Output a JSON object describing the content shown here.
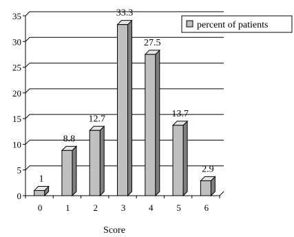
{
  "chart_data": {
    "type": "bar",
    "categories": [
      "0",
      "1",
      "2",
      "3",
      "4",
      "5",
      "6"
    ],
    "series": [
      {
        "name": "percent of patients",
        "values": [
          1,
          8.8,
          12.7,
          33.3,
          27.5,
          13.7,
          2.9
        ]
      }
    ],
    "data_labels": [
      "1",
      "8.8",
      "12.7",
      "33.3",
      "27.5",
      "13.7",
      "2.9"
    ],
    "y_ticks": [
      "0",
      "5",
      "10",
      "15",
      "20",
      "25",
      "30",
      "35"
    ],
    "xlabel": "Score",
    "ylabel": "",
    "title": "",
    "ylim": [
      0,
      35
    ],
    "grid": "horizontal",
    "legend_position": "top-right",
    "style": "3d",
    "colors": {
      "bar_front": "#c0c0c0",
      "bar_top": "#e6e6e6",
      "bar_side": "#7f7f7f",
      "axis": "#000000",
      "grid": "#000000"
    }
  }
}
